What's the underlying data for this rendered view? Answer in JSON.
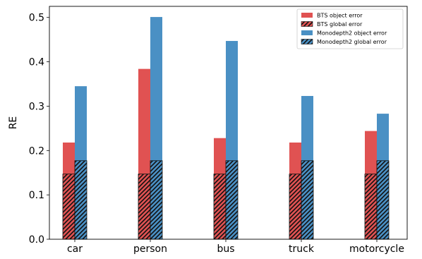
{
  "colors": {
    "bts": "#e05252",
    "monodepth2": "#4a90c4",
    "hatch": "#111111",
    "axis": "#000000"
  },
  "chart_data": {
    "type": "bar",
    "title": "",
    "xlabel": "",
    "ylabel": "RE",
    "ylim": [
      0,
      0.525
    ],
    "yticks": [
      "0.0",
      "0.1",
      "0.2",
      "0.3",
      "0.4",
      "0.5"
    ],
    "grid": false,
    "legend_position": "top-right",
    "categories": [
      "car",
      "person",
      "bus",
      "truck",
      "motorcycle"
    ],
    "series": [
      {
        "name": "BTS object error",
        "values": [
          0.218,
          0.384,
          0.228,
          0.218,
          0.244
        ]
      },
      {
        "name": "BTS global error",
        "values": [
          0.147,
          0.147,
          0.147,
          0.147,
          0.147
        ]
      },
      {
        "name": "Monodepth2 object error",
        "values": [
          0.345,
          0.501,
          0.447,
          0.323,
          0.283
        ]
      },
      {
        "name": "Monodepth2 global error",
        "values": [
          0.177,
          0.177,
          0.177,
          0.177,
          0.177
        ]
      }
    ]
  }
}
